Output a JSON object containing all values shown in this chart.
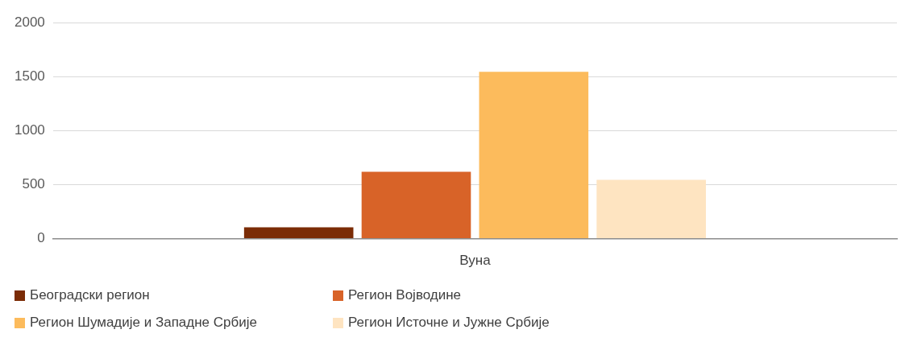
{
  "chart_data": {
    "type": "bar",
    "categories": [
      "Вуна"
    ],
    "series": [
      {
        "name": "Београдски регион",
        "color": "#7b2c06",
        "values": [
          105
        ]
      },
      {
        "name": "Регион Војводине",
        "color": "#d86328",
        "values": [
          620
        ]
      },
      {
        "name": "Регион Шумадије и Западне Србије",
        "color": "#fcbb5c",
        "values": [
          1545
        ]
      },
      {
        "name": "Регион Источне и Јужне Србије",
        "color": "#fee4c1",
        "values": [
          545
        ]
      }
    ],
    "ylim": [
      0,
      2000
    ],
    "yticks": [
      0,
      500,
      1000,
      1500,
      2000
    ],
    "grid": "y",
    "legend": "bottom"
  }
}
